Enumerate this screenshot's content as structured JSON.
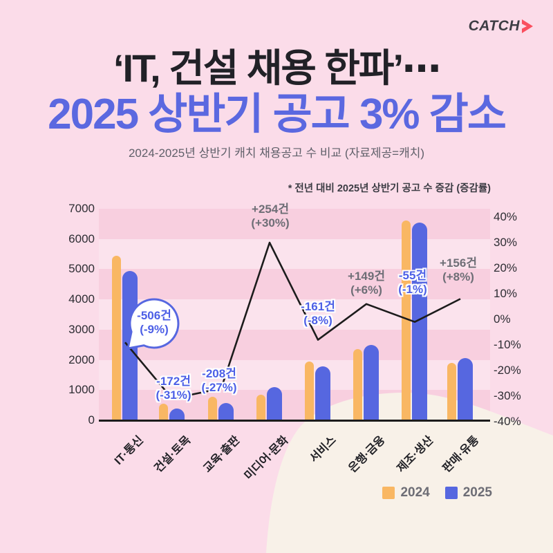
{
  "logo": {
    "text": "CATCH",
    "arrow_color": "#fa4e5e"
  },
  "header": {
    "title_line1": "‘IT, 건설 채용 한파’⋯",
    "title_line2": "2025 상반기 공고 3% 감소",
    "subtitle": "2024-2025년 상반기 캐치 채용공고 수 비교 (자료제공=캐치)",
    "note": "* 전년 대비 2025년 상반기 공고 수 증감 (증감률)"
  },
  "colors": {
    "title1": "#212127",
    "title2": "#5b68e0",
    "bar_2024": "#f9b763",
    "bar_2025": "#5667e0",
    "line": "#1c1c1c",
    "label_blue": "#4c5fe6",
    "label_gray": "#6e6e76",
    "background": "#fbdce9",
    "blob_cream": "#f8f1e8"
  },
  "legend": {
    "items": [
      {
        "label": "2024",
        "color": "#f9b763"
      },
      {
        "label": "2025",
        "color": "#5667e0"
      }
    ]
  },
  "chart_data": {
    "type": "bar",
    "subtype": "grouped-bars-with-line-overlay",
    "title": "2024-2025년 상반기 캐치 채용공고 수 비교",
    "categories": [
      "IT·통신",
      "건설·토목",
      "교육·출판",
      "미디어·문화",
      "서비스",
      "은행·금융",
      "제조·생산",
      "판매·유통"
    ],
    "series": [
      {
        "name": "2024",
        "type": "bar",
        "values": [
          5450,
          555,
          770,
          847,
          1950,
          2350,
          6600,
          1900
        ]
      },
      {
        "name": "2025",
        "type": "bar",
        "values": [
          4944,
          383,
          562,
          1101,
          1789,
          2499,
          6545,
          2056
        ]
      }
    ],
    "line_series": {
      "name": "증감률(%)",
      "type": "line",
      "values": [
        -9,
        -31,
        -27,
        30,
        -8,
        6,
        -1,
        8
      ]
    },
    "point_labels": [
      {
        "line1": "-506건",
        "line2": "(-9%)",
        "style": "bubble"
      },
      {
        "line1": "-172건",
        "line2": "(-31%)",
        "style": "blue"
      },
      {
        "line1": "-208건",
        "line2": "(-27%)",
        "style": "blue"
      },
      {
        "line1": "+254건",
        "line2": "(+30%)",
        "style": "gray"
      },
      {
        "line1": "-161건",
        "line2": "(-8%)",
        "style": "blue"
      },
      {
        "line1": "+149건",
        "line2": "(+6%)",
        "style": "gray"
      },
      {
        "line1": "-55건",
        "line2": "(-1%)",
        "style": "blue"
      },
      {
        "line1": "+156건",
        "line2": "(+8%)",
        "style": "gray"
      }
    ],
    "left_axis": {
      "ticks": [
        "7000",
        "6000",
        "5000",
        "4000",
        "3000",
        "2000",
        "1000",
        "0"
      ],
      "min": 0,
      "max": 7000
    },
    "right_axis": {
      "ticks": [
        "40%",
        "30%",
        "20%",
        "10%",
        "0%",
        "-10%",
        "-20%",
        "-30%",
        "-40%"
      ],
      "min": -40,
      "max": 40
    },
    "grid": "horizontal pink bands, alternating",
    "legend_position": "bottom-right"
  }
}
